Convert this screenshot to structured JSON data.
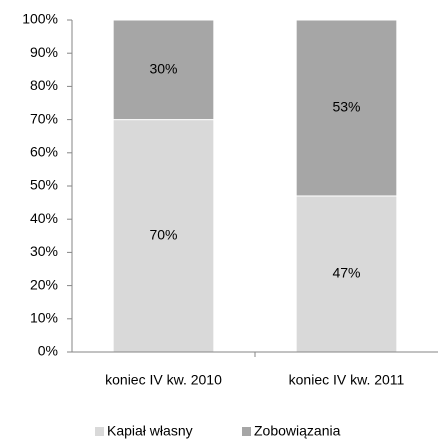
{
  "chart_data": {
    "type": "stacked_bar",
    "categories": [
      "koniec IV kw. 2010",
      "koniec IV kw. 2011"
    ],
    "series": [
      {
        "name": "Kapiał własny",
        "color": "#d9d9d9",
        "values": [
          70,
          47
        ],
        "value_labels": [
          "70%",
          "47%"
        ]
      },
      {
        "name": "Zobowiązania",
        "color": "#a6a6a6",
        "values": [
          30,
          53
        ],
        "value_labels": [
          "30%",
          "53%"
        ]
      }
    ],
    "ylim": [
      0,
      100
    ],
    "yticks": [
      {
        "value": 0,
        "label": "0%"
      },
      {
        "value": 10,
        "label": "10%"
      },
      {
        "value": 20,
        "label": "20%"
      },
      {
        "value": 30,
        "label": "30%"
      },
      {
        "value": 40,
        "label": "40%"
      },
      {
        "value": 50,
        "label": "50%"
      },
      {
        "value": 60,
        "label": "60%"
      },
      {
        "value": 70,
        "label": "70%"
      },
      {
        "value": 80,
        "label": "80%"
      },
      {
        "value": 90,
        "label": "90%"
      },
      {
        "value": 100,
        "label": "100%"
      }
    ],
    "legend": "bottom"
  }
}
